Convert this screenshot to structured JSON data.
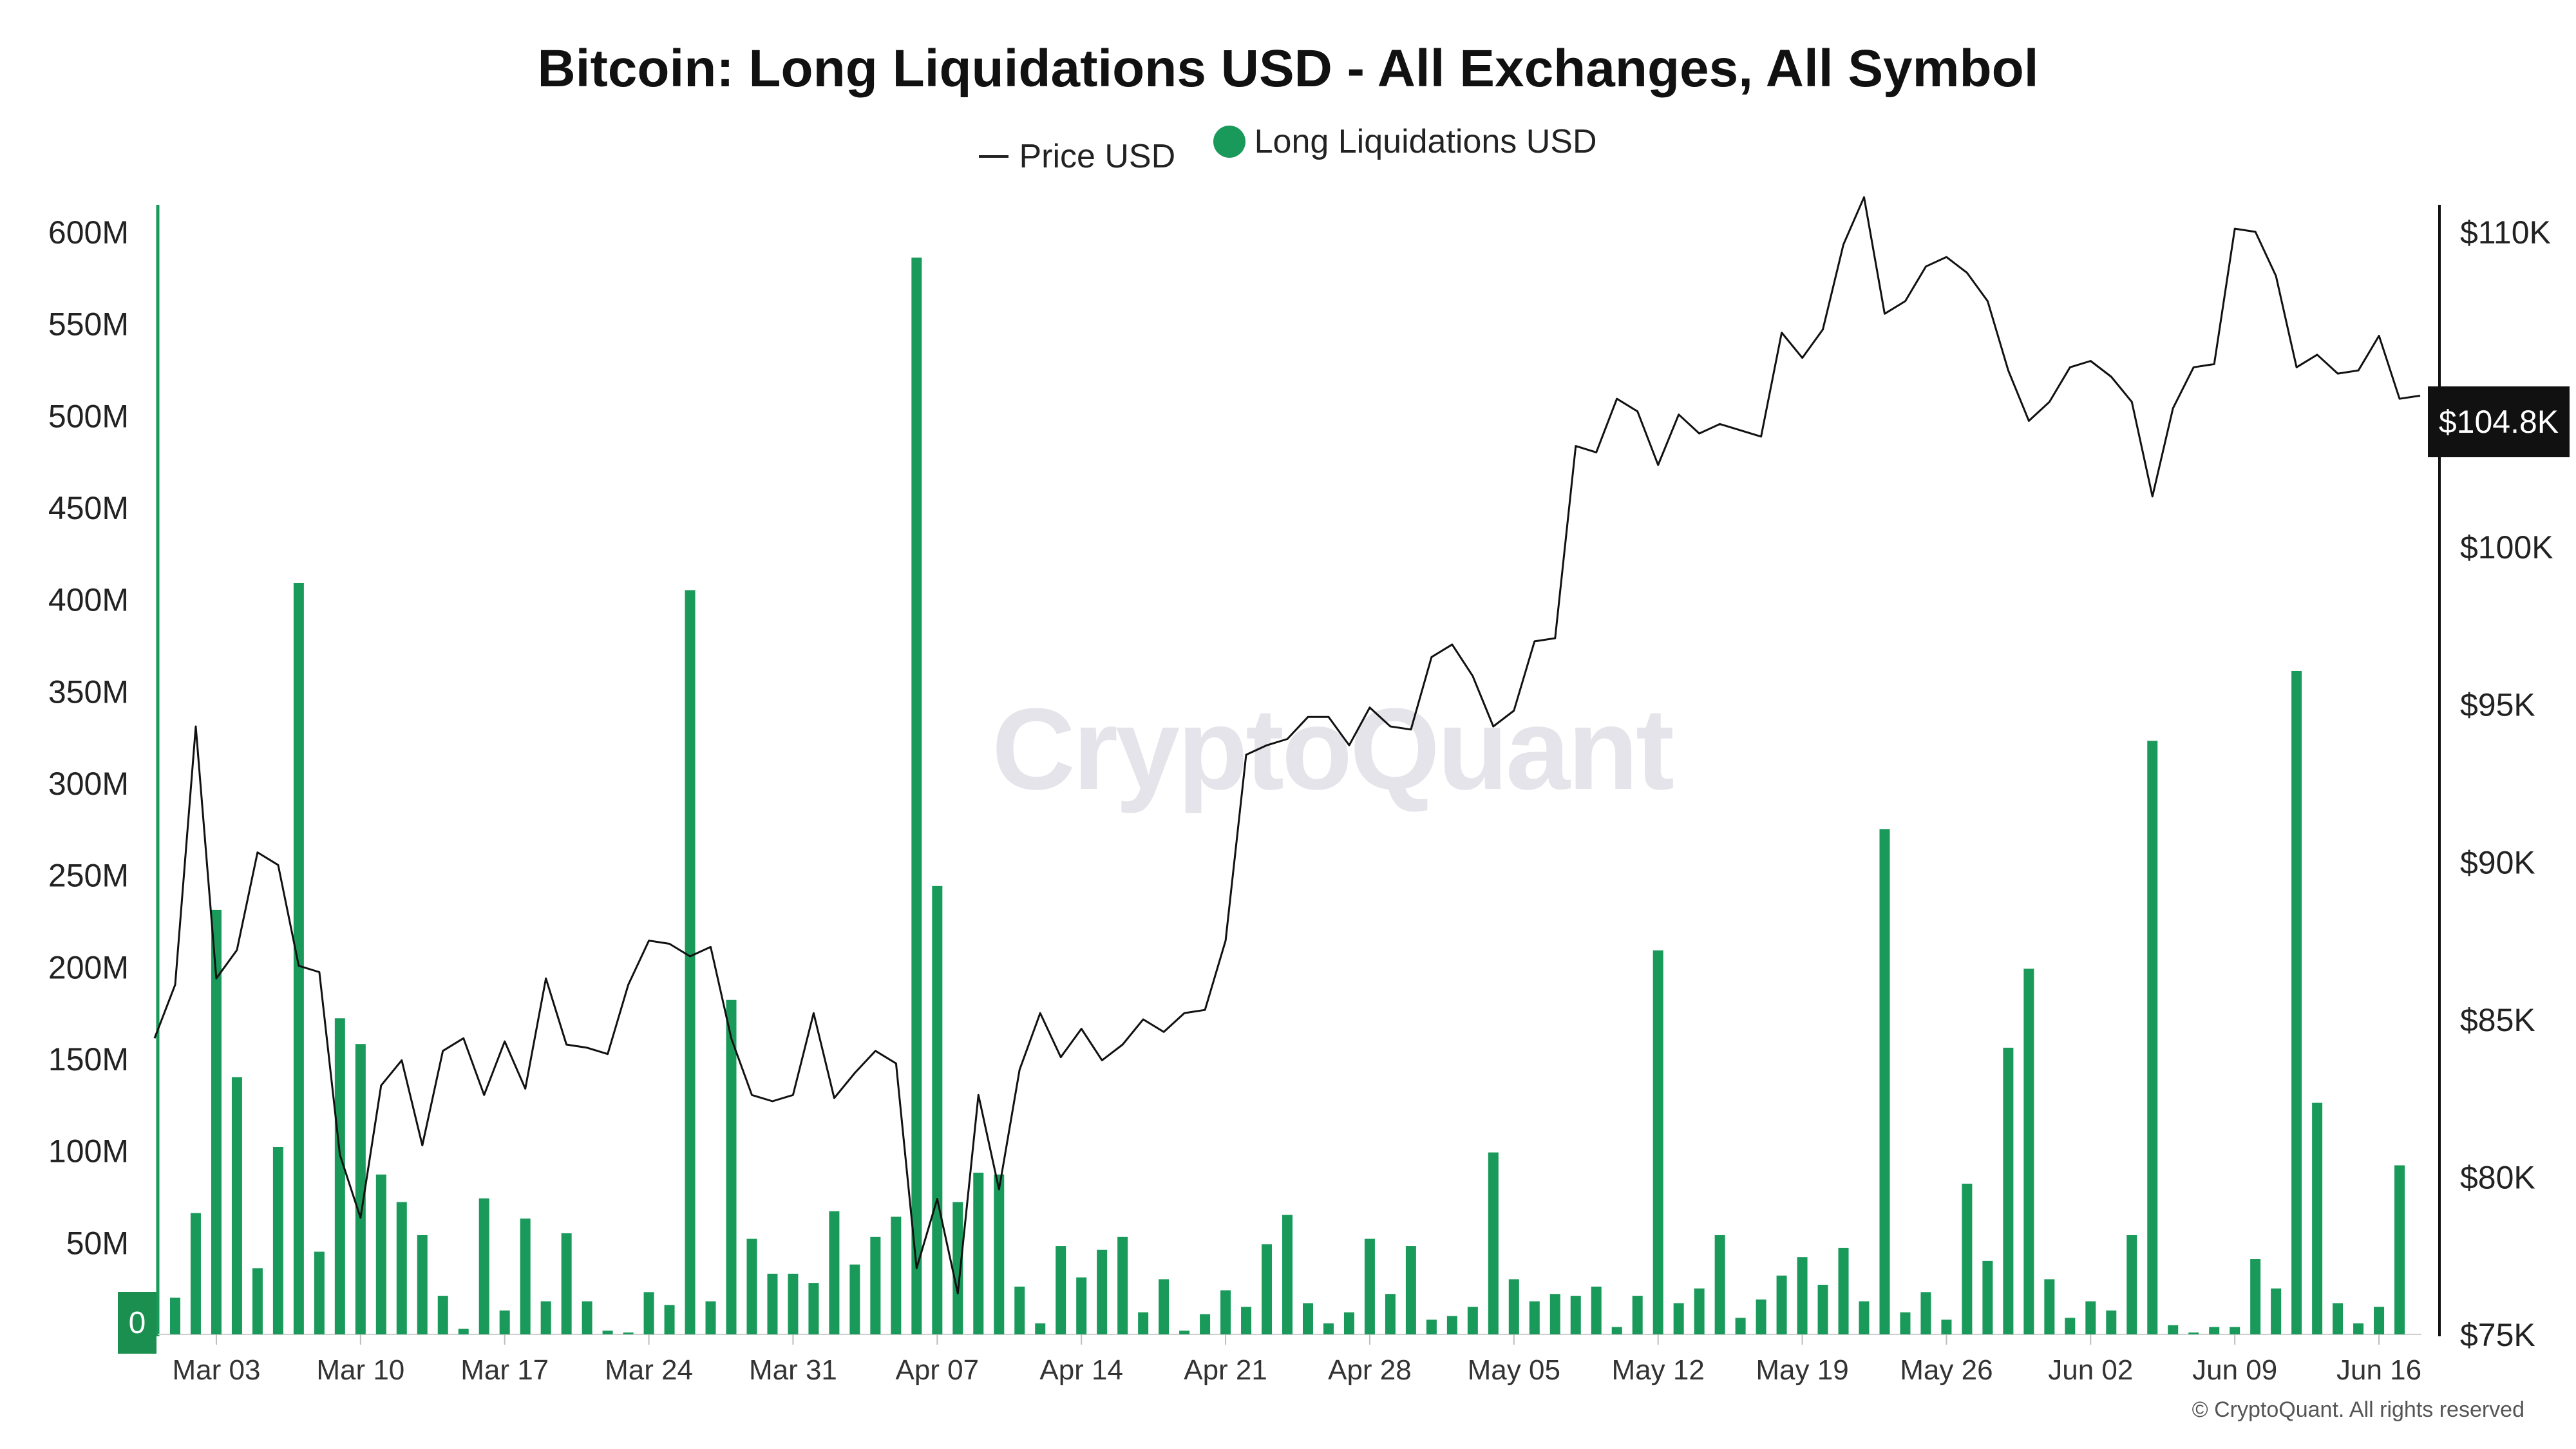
{
  "chart_data": {
    "type": "bar",
    "title": "Bitcoin: Long Liquidations USD - All Exchanges, All Symbol",
    "legend": [
      "Price USD",
      "Long Liquidations USD"
    ],
    "legend_position": "top-center",
    "grid": false,
    "colors": {
      "bars": "#1a9a5a",
      "price": "#111111",
      "left_axis": "#1a9a5a",
      "right_axis": "#111111"
    },
    "x_ticks": [
      "Mar 03",
      "Mar 10",
      "Mar 17",
      "Mar 24",
      "Mar 31",
      "Apr 07",
      "Apr 14",
      "Apr 21",
      "Apr 28",
      "May 05",
      "May 12",
      "May 19",
      "May 26",
      "Jun 02",
      "Jun 09",
      "Jun 16"
    ],
    "x_range": [
      "2025-02-28",
      "2025-06-19"
    ],
    "y_left": {
      "label": "",
      "ylim": [
        0,
        600000000
      ],
      "ticks": [
        "0",
        "50M",
        "100M",
        "150M",
        "200M",
        "250M",
        "300M",
        "350M",
        "400M",
        "450M",
        "500M",
        "550M",
        "600M"
      ]
    },
    "y_right": {
      "label": "",
      "ylim": [
        75000,
        110000
      ],
      "ticks": [
        "$75K",
        "$80K",
        "$85K",
        "$90K",
        "$95K",
        "$100K",
        "$110K"
      ]
    },
    "series": [
      {
        "name": "Long Liquidations USD",
        "kind": "bar",
        "axis": "left",
        "unit": "M USD",
        "x": [
          "2025-03-01",
          "2025-03-02",
          "2025-03-03",
          "2025-03-04",
          "2025-03-05",
          "2025-03-06",
          "2025-03-07",
          "2025-03-08",
          "2025-03-09",
          "2025-03-10",
          "2025-03-11",
          "2025-03-12",
          "2025-03-13",
          "2025-03-14",
          "2025-03-15",
          "2025-03-16",
          "2025-03-17",
          "2025-03-18",
          "2025-03-19",
          "2025-03-20",
          "2025-03-21",
          "2025-03-22",
          "2025-03-23",
          "2025-03-24",
          "2025-03-25",
          "2025-03-26",
          "2025-03-27",
          "2025-03-28",
          "2025-03-29",
          "2025-03-30",
          "2025-03-31",
          "2025-04-01",
          "2025-04-02",
          "2025-04-03",
          "2025-04-04",
          "2025-04-05",
          "2025-04-06",
          "2025-04-07",
          "2025-04-08",
          "2025-04-09",
          "2025-04-10",
          "2025-04-11",
          "2025-04-12",
          "2025-04-13",
          "2025-04-14",
          "2025-04-15",
          "2025-04-16",
          "2025-04-17",
          "2025-04-18",
          "2025-04-19",
          "2025-04-20",
          "2025-04-21",
          "2025-04-22",
          "2025-04-23",
          "2025-04-24",
          "2025-04-25",
          "2025-04-26",
          "2025-04-27",
          "2025-04-28",
          "2025-04-29",
          "2025-04-30",
          "2025-05-01",
          "2025-05-02",
          "2025-05-03",
          "2025-05-04",
          "2025-05-05",
          "2025-05-06",
          "2025-05-07",
          "2025-05-08",
          "2025-05-09",
          "2025-05-10",
          "2025-05-11",
          "2025-05-12",
          "2025-05-13",
          "2025-05-14",
          "2025-05-15",
          "2025-05-16",
          "2025-05-17",
          "2025-05-18",
          "2025-05-19",
          "2025-05-20",
          "2025-05-21",
          "2025-05-22",
          "2025-05-23",
          "2025-05-24",
          "2025-05-25",
          "2025-05-26",
          "2025-05-27",
          "2025-05-28",
          "2025-05-29",
          "2025-05-30",
          "2025-05-31",
          "2025-06-01",
          "2025-06-02",
          "2025-06-03",
          "2025-06-04",
          "2025-06-05",
          "2025-06-06",
          "2025-06-07",
          "2025-06-08",
          "2025-06-09",
          "2025-06-10",
          "2025-06-11",
          "2025-06-12",
          "2025-06-13",
          "2025-06-14",
          "2025-06-15",
          "2025-06-16",
          "2025-06-17"
        ],
        "values": [
          20,
          66,
          231,
          140,
          36,
          102,
          409,
          45,
          172,
          158,
          87,
          72,
          54,
          21,
          3,
          74,
          13,
          63,
          18,
          55,
          18,
          2,
          1,
          23,
          16,
          405,
          18,
          182,
          52,
          33,
          33,
          28,
          67,
          38,
          53,
          64,
          586,
          244,
          72,
          88,
          87,
          26,
          6,
          48,
          31,
          46,
          53,
          12,
          30,
          2,
          11,
          24,
          15,
          49,
          65,
          17,
          6,
          12,
          52,
          22,
          48,
          8,
          10,
          15,
          99,
          30,
          18,
          22,
          21,
          26,
          4,
          21,
          209,
          17,
          25,
          54,
          9,
          19,
          32,
          42,
          27,
          47,
          18,
          275,
          12,
          23,
          8,
          82,
          40,
          156,
          199,
          30,
          9,
          18,
          13,
          54,
          323,
          5,
          1,
          4,
          4,
          41,
          25,
          361,
          126,
          17,
          6,
          15,
          92
        ]
      },
      {
        "name": "Price USD",
        "kind": "line",
        "axis": "right",
        "unit": "USD",
        "x": [
          "2025-02-28",
          "2025-03-01",
          "2025-03-02",
          "2025-03-03",
          "2025-03-04",
          "2025-03-05",
          "2025-03-06",
          "2025-03-07",
          "2025-03-08",
          "2025-03-09",
          "2025-03-10",
          "2025-03-11",
          "2025-03-12",
          "2025-03-13",
          "2025-03-14",
          "2025-03-15",
          "2025-03-16",
          "2025-03-17",
          "2025-03-18",
          "2025-03-19",
          "2025-03-20",
          "2025-03-21",
          "2025-03-22",
          "2025-03-23",
          "2025-03-24",
          "2025-03-25",
          "2025-03-26",
          "2025-03-27",
          "2025-03-28",
          "2025-03-29",
          "2025-03-30",
          "2025-03-31",
          "2025-04-01",
          "2025-04-02",
          "2025-04-03",
          "2025-04-04",
          "2025-04-05",
          "2025-04-06",
          "2025-04-07",
          "2025-04-08",
          "2025-04-09",
          "2025-04-10",
          "2025-04-11",
          "2025-04-12",
          "2025-04-13",
          "2025-04-14",
          "2025-04-15",
          "2025-04-16",
          "2025-04-17",
          "2025-04-18",
          "2025-04-19",
          "2025-04-20",
          "2025-04-21",
          "2025-04-22",
          "2025-04-23",
          "2025-04-24",
          "2025-04-25",
          "2025-04-26",
          "2025-04-27",
          "2025-04-28",
          "2025-04-29",
          "2025-04-30",
          "2025-05-01",
          "2025-05-02",
          "2025-05-03",
          "2025-05-04",
          "2025-05-05",
          "2025-05-06",
          "2025-05-07",
          "2025-05-08",
          "2025-05-09",
          "2025-05-10",
          "2025-05-11",
          "2025-05-12",
          "2025-05-13",
          "2025-05-14",
          "2025-05-15",
          "2025-05-16",
          "2025-05-17",
          "2025-05-18",
          "2025-05-19",
          "2025-05-20",
          "2025-05-21",
          "2025-05-22",
          "2025-05-23",
          "2025-05-24",
          "2025-05-25",
          "2025-05-26",
          "2025-05-27",
          "2025-05-28",
          "2025-05-29",
          "2025-05-30",
          "2025-05-31",
          "2025-06-01",
          "2025-06-02",
          "2025-06-03",
          "2025-06-04",
          "2025-06-05",
          "2025-06-06",
          "2025-06-07",
          "2025-06-08",
          "2025-06-09",
          "2025-06-10",
          "2025-06-11",
          "2025-06-12",
          "2025-06-13",
          "2025-06-14",
          "2025-06-15",
          "2025-06-16",
          "2025-06-17",
          "2025-06-18"
        ],
        "values": [
          84400,
          86100,
          94300,
          86300,
          87200,
          90300,
          89900,
          86700,
          86500,
          80700,
          78700,
          82900,
          83700,
          81000,
          84000,
          84400,
          82600,
          84300,
          82800,
          86300,
          84200,
          84100,
          83900,
          86100,
          87500,
          87400,
          87000,
          87300,
          84400,
          82600,
          82400,
          82600,
          85200,
          82500,
          83300,
          84000,
          83600,
          77100,
          79300,
          76300,
          82600,
          79600,
          83400,
          85200,
          83800,
          84700,
          83700,
          84200,
          85000,
          84600,
          85200,
          85300,
          87500,
          93400,
          93700,
          93900,
          94600,
          94600,
          93700,
          94900,
          94300,
          94200,
          96500,
          96900,
          95900,
          94300,
          94800,
          97000,
          97100,
          103200,
          103000,
          104700,
          104300,
          102600,
          104200,
          103600,
          103900,
          103700,
          103500,
          106800,
          106000,
          106900,
          109600,
          111100,
          107400,
          107800,
          108900,
          109200,
          108700,
          107800,
          105600,
          104000,
          104600,
          105700,
          105900,
          105400,
          104600,
          101600,
          104400,
          105700,
          105800,
          110100,
          110000,
          108600,
          105700,
          106100,
          105500,
          105600,
          106700,
          104700,
          104800
        ]
      }
    ],
    "annotations": [
      "$104.8K",
      "0"
    ]
  },
  "watermark": "CryptoQuant",
  "footer": {
    "copyright": "© CryptoQuant. All rights reserved"
  }
}
